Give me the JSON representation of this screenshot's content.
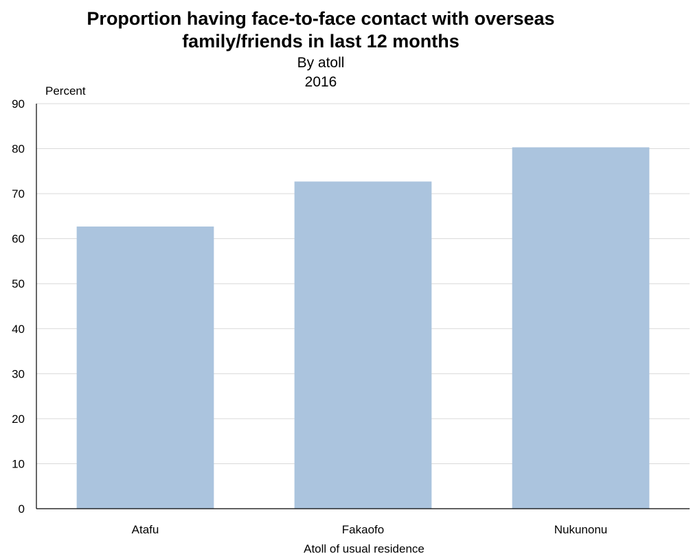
{
  "chart_data": {
    "type": "bar",
    "title": "Proportion having face-to-face contact with overseas family/friends in last 12 months",
    "title_lines": [
      "Proportion having face-to-face contact with overseas",
      "family/friends in last 12 months"
    ],
    "subtitle_lines": [
      "By atoll",
      "2016"
    ],
    "ylabel": "Percent",
    "xlabel": "Atoll of usual residence",
    "categories": [
      "Atafu",
      "Fakaofo",
      "Nukunonu"
    ],
    "values": [
      62.7,
      72.7,
      80.3
    ],
    "ylim": [
      0,
      90
    ],
    "yticks": [
      "0",
      "10",
      "20",
      "30",
      "40",
      "50",
      "60",
      "70",
      "80",
      "90"
    ],
    "grid": true,
    "legend": "none",
    "bar_color": "#abc4de",
    "grid_color": "#d9d9d9",
    "axis_color": "#000000"
  }
}
